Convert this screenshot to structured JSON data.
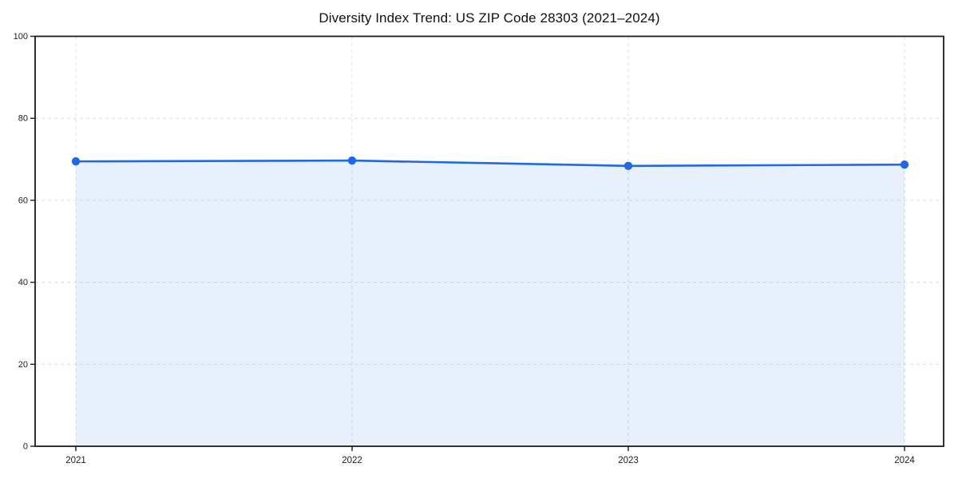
{
  "chart_data": {
    "type": "area",
    "title": "Diversity Index Trend: US ZIP Code 28303 (2021–2024)",
    "categories": [
      "2021",
      "2022",
      "2023",
      "2024"
    ],
    "x": [
      2021,
      2022,
      2023,
      2024
    ],
    "values": [
      69.5,
      69.7,
      68.4,
      68.7
    ],
    "series_name": "Diversity Index",
    "xlabel": "",
    "ylabel": "",
    "ylim": [
      0,
      100
    ],
    "yticks": [
      0,
      20,
      40,
      60,
      80,
      100
    ],
    "grid": true,
    "grid_style": "dashed",
    "legend": "none",
    "colors": {
      "line": "#2068e4",
      "marker": "#2068e4",
      "fill": "#2068e4",
      "fill_opacity": 0.1,
      "gridline": "#d9dce1",
      "frame": "#1c1c1c",
      "tick_text": "#1a1a1a",
      "background": "#ffffff"
    }
  }
}
